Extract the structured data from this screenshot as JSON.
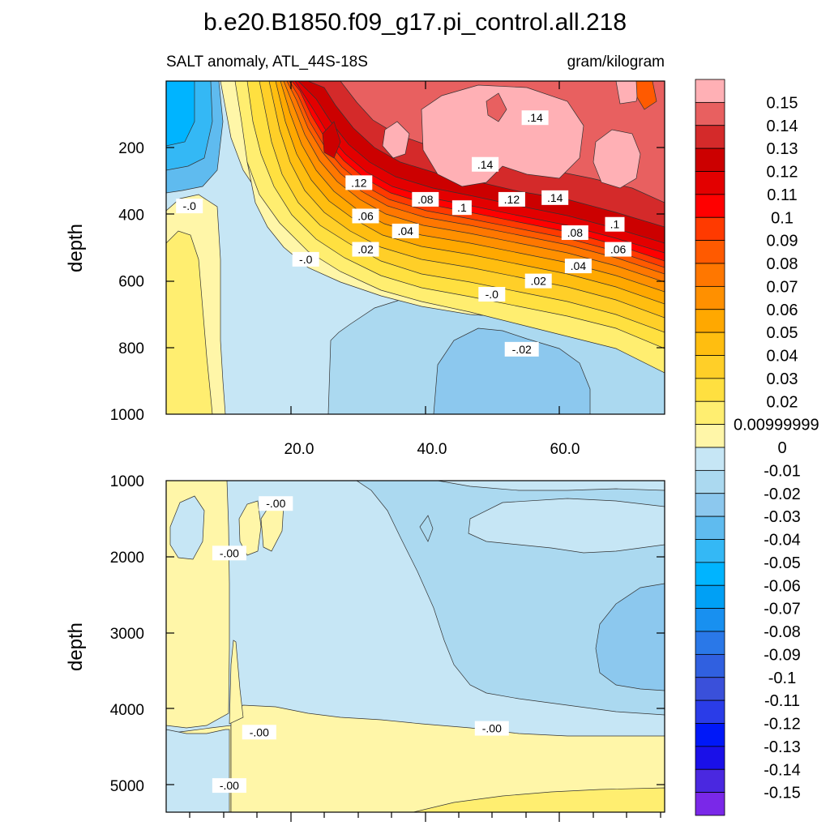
{
  "chart_data": {
    "type": "contour",
    "title": "b.e20.B1850.f09_g17.pi_control.all.218",
    "subtitle_left": "SALT anomaly, ATL_44S-18S",
    "subtitle_right": "gram/kilogram",
    "x_range": [
      0,
      75
    ],
    "x_ticks": [
      "20.0",
      "40.0",
      "60.0"
    ],
    "x_tick_values": [
      20,
      40,
      60
    ],
    "panels": [
      {
        "id": "upper",
        "ylabel": "depth",
        "y_range": [
          0,
          1000
        ],
        "y_ticks": [
          "200",
          "400",
          "600",
          "800",
          "1000"
        ],
        "y_tick_values": [
          200,
          400,
          600,
          800,
          1000
        ],
        "contour_labels": [
          {
            "text": ".14",
            "x": 55.5,
            "y": 110
          },
          {
            "text": ".14",
            "x": 48,
            "y": 250
          },
          {
            "text": ".14",
            "x": 58.5,
            "y": 350
          },
          {
            "text": ".12",
            "x": 29,
            "y": 305
          },
          {
            "text": ".12",
            "x": 52,
            "y": 355
          },
          {
            "text": ".08",
            "x": 39,
            "y": 355
          },
          {
            "text": ".1",
            "x": 44.5,
            "y": 380
          },
          {
            "text": ".1",
            "x": 67.5,
            "y": 430
          },
          {
            "text": ".06",
            "x": 30,
            "y": 405
          },
          {
            "text": ".04",
            "x": 36,
            "y": 450
          },
          {
            "text": ".08",
            "x": 61.5,
            "y": 455
          },
          {
            "text": ".06",
            "x": 68,
            "y": 505
          },
          {
            "text": ".02",
            "x": 30,
            "y": 505
          },
          {
            "text": ".04",
            "x": 62,
            "y": 555
          },
          {
            "text": ".02",
            "x": 56,
            "y": 600
          },
          {
            "text": "-.0",
            "x": 3.5,
            "y": 375
          },
          {
            "text": "-.0",
            "x": 21,
            "y": 535
          },
          {
            "text": "-.0",
            "x": 49,
            "y": 640
          },
          {
            "text": "-.02",
            "x": 53.5,
            "y": 805
          }
        ]
      },
      {
        "id": "lower",
        "ylabel": "depth",
        "y_range": [
          1000,
          5350
        ],
        "y_ticks": [
          "1000",
          "2000",
          "3000",
          "4000",
          "5000"
        ],
        "y_tick_values": [
          1000,
          2000,
          3000,
          4000,
          5000
        ],
        "contour_labels": [
          {
            "text": "-.00",
            "x": 16.5,
            "y": 1300
          },
          {
            "text": "-.00",
            "x": 9.5,
            "y": 1950
          },
          {
            "text": "-.00",
            "x": 14,
            "y": 4300
          },
          {
            "text": "-.00",
            "x": 49,
            "y": 4250
          },
          {
            "text": "-.00",
            "x": 9.5,
            "y": 5000
          }
        ]
      }
    ],
    "colorbar": {
      "labels": [
        "0.15",
        "0.14",
        "0.13",
        "0.12",
        "0.11",
        "0.1",
        "0.09",
        "0.08",
        "0.07",
        "0.06",
        "0.05",
        "0.04",
        "0.03",
        "0.02",
        "0.00999999",
        "0",
        "-0.01",
        "-0.02",
        "-0.03",
        "-0.04",
        "-0.05",
        "-0.06",
        "-0.07",
        "-0.08",
        "-0.09",
        "-0.1",
        "-0.11",
        "-0.12",
        "-0.13",
        "-0.14",
        "-0.15"
      ],
      "colors": [
        "#ffb0b5",
        "#e86060",
        "#d42a2a",
        "#cc0000",
        "#e30000",
        "#ff0000",
        "#ff3a00",
        "#ff5a00",
        "#ff7700",
        "#ff9000",
        "#ffa800",
        "#ffbe10",
        "#ffcf28",
        "#ffe040",
        "#ffee70",
        "#fff6a8",
        "#c6e6f5",
        "#abd9f0",
        "#8cc8ee",
        "#5fbbef",
        "#34b8f5",
        "#00b4ff",
        "#00a0f5",
        "#1890f0",
        "#2a78e8",
        "#3060e0",
        "#3a50da",
        "#2a3ce8",
        "#0018f8",
        "#1a10e8",
        "#4a28e0",
        "#7a28e8"
      ]
    }
  }
}
